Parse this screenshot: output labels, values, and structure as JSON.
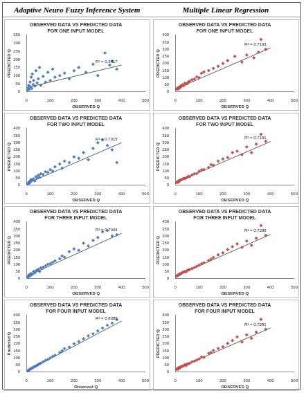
{
  "headers": [
    "Adaptive Neuro Fuzzy Inference System",
    "Multiple Linear Regression"
  ],
  "chart_data": [
    {
      "type": "scatter",
      "title": [
        "OBSERVED DATA VS PREDICTED DATA",
        "FOR ONE INPUT MODEL"
      ],
      "x_label": "OBSERVED Q",
      "y_label": "PREDICTED Q",
      "x": [
        5,
        8,
        10,
        12,
        15,
        18,
        20,
        22,
        25,
        28,
        30,
        35,
        40,
        45,
        50,
        55,
        60,
        70,
        80,
        90,
        100,
        110,
        120,
        140,
        160,
        180,
        200,
        220,
        250,
        280,
        300,
        330,
        350,
        360,
        380
      ],
      "y": [
        10,
        25,
        40,
        15,
        60,
        30,
        90,
        20,
        110,
        45,
        70,
        35,
        130,
        55,
        80,
        150,
        40,
        95,
        60,
        120,
        70,
        140,
        90,
        100,
        115,
        80,
        130,
        150,
        120,
        170,
        100,
        240,
        165,
        190,
        140
      ],
      "trend_line": {
        "x": [
          0,
          400
        ],
        "y": [
          25,
          165
        ]
      },
      "annotation": "R² = 0.3417",
      "color": "#4a7ebb",
      "marker": "diamond",
      "grid": false,
      "xlim": [
        0,
        500
      ],
      "xticks": [
        0,
        100,
        200,
        300,
        400,
        500
      ],
      "ylim": [
        0,
        350
      ],
      "yticks": [
        0,
        50,
        100,
        150,
        200,
        250,
        300,
        350
      ]
    },
    {
      "type": "scatter",
      "title": [
        "OBSERVED DATA VS PREDICTED DATA",
        "FOR ONE INPUT MODEL"
      ],
      "x_label": "OBSERVED Q",
      "y_label": "PREDICTED Q",
      "x": [
        5,
        8,
        10,
        12,
        15,
        18,
        20,
        22,
        25,
        28,
        30,
        35,
        40,
        45,
        50,
        55,
        60,
        70,
        80,
        90,
        100,
        110,
        120,
        140,
        160,
        180,
        200,
        220,
        250,
        280,
        300,
        330,
        350,
        360,
        380
      ],
      "y": [
        20,
        22,
        25,
        18,
        30,
        35,
        28,
        40,
        38,
        45,
        50,
        42,
        60,
        55,
        58,
        70,
        75,
        85,
        90,
        105,
        100,
        130,
        140,
        150,
        165,
        180,
        200,
        220,
        250,
        210,
        260,
        240,
        280,
        370,
        300
      ],
      "trend_line": {
        "x": [
          0,
          400
        ],
        "y": [
          18,
          310
        ]
      },
      "annotation": "R² = 0.7193",
      "color": "#c0504d",
      "marker": "diamond",
      "grid": false,
      "xlim": [
        0,
        500
      ],
      "xticks": [
        0,
        100,
        200,
        300,
        400,
        500
      ],
      "ylim": [
        0,
        400
      ],
      "yticks": [
        0,
        50,
        100,
        150,
        200,
        250,
        300,
        350,
        400
      ]
    },
    {
      "type": "scatter",
      "title": [
        "OBSERVED DATA VS PREDICTED DATA",
        "FOR TWO INPUT MODEL"
      ],
      "x_label": "OBSERVED Q",
      "y_label": "PREDICTED Q",
      "x": [
        5,
        8,
        10,
        12,
        15,
        18,
        20,
        25,
        30,
        35,
        40,
        45,
        50,
        55,
        60,
        70,
        80,
        90,
        100,
        110,
        120,
        140,
        150,
        160,
        180,
        200,
        220,
        240,
        260,
        280,
        300,
        320,
        340,
        360,
        380
      ],
      "y": [
        8,
        15,
        20,
        12,
        30,
        25,
        40,
        35,
        45,
        30,
        60,
        50,
        70,
        55,
        80,
        75,
        95,
        90,
        110,
        100,
        130,
        150,
        120,
        170,
        160,
        200,
        190,
        230,
        180,
        260,
        300,
        320,
        280,
        250,
        160
      ],
      "trend_line": {
        "x": [
          0,
          400
        ],
        "y": [
          10,
          300
        ]
      },
      "annotation": "R² = 0.7315",
      "color": "#4a7ebb",
      "marker": "diamond",
      "grid": false,
      "xlim": [
        0,
        500
      ],
      "xticks": [
        0,
        100,
        200,
        300,
        400,
        500
      ],
      "ylim": [
        0,
        400
      ],
      "yticks": [
        0,
        50,
        100,
        150,
        200,
        250,
        300,
        350,
        400
      ]
    },
    {
      "type": "scatter",
      "title": [
        "OBSERVED DATA VS PREDICTED DATA",
        "FOR TWO INPUT MODEL"
      ],
      "x_label": "OBSERVED Q",
      "y_label": "PREDICTED Q",
      "x": [
        5,
        8,
        10,
        12,
        15,
        18,
        20,
        25,
        30,
        35,
        40,
        45,
        50,
        55,
        60,
        70,
        80,
        90,
        100,
        110,
        120,
        140,
        150,
        160,
        180,
        200,
        220,
        240,
        260,
        280,
        300,
        320,
        340,
        360,
        380
      ],
      "y": [
        18,
        24,
        22,
        20,
        32,
        30,
        36,
        38,
        42,
        48,
        46,
        52,
        55,
        62,
        60,
        72,
        80,
        82,
        98,
        108,
        110,
        125,
        145,
        140,
        170,
        185,
        195,
        230,
        240,
        215,
        270,
        230,
        290,
        360,
        310
      ],
      "trend_line": {
        "x": [
          0,
          400
        ],
        "y": [
          18,
          308
        ]
      },
      "annotation": "R² = 0.7191",
      "color": "#c0504d",
      "marker": "diamond",
      "grid": false,
      "xlim": [
        0,
        500
      ],
      "xticks": [
        0,
        100,
        200,
        300,
        400,
        500
      ],
      "ylim": [
        0,
        400
      ],
      "yticks": [
        0,
        50,
        100,
        150,
        200,
        250,
        300,
        350,
        400
      ]
    },
    {
      "type": "scatter",
      "title": [
        "OBSERVED DATA VS PREDICTED DATA",
        "FOR THREE INPUT MODEL"
      ],
      "x_label": "OBSERVED Q",
      "y_label": "PREDICTED Q",
      "x": [
        5,
        8,
        10,
        12,
        15,
        18,
        20,
        25,
        30,
        35,
        40,
        45,
        50,
        55,
        60,
        70,
        80,
        90,
        100,
        110,
        120,
        140,
        150,
        160,
        180,
        200,
        220,
        240,
        260,
        280,
        300,
        320,
        340,
        360,
        380
      ],
      "y": [
        10,
        12,
        25,
        18,
        30,
        22,
        35,
        30,
        50,
        40,
        55,
        60,
        65,
        50,
        75,
        80,
        90,
        100,
        105,
        115,
        125,
        140,
        160,
        150,
        190,
        210,
        200,
        250,
        230,
        270,
        290,
        330,
        340,
        300,
        310
      ],
      "trend_line": {
        "x": [
          0,
          400
        ],
        "y": [
          15,
          320
        ]
      },
      "annotation": "R² = 0.7404",
      "color": "#4a7ebb",
      "marker": "diamond",
      "grid": false,
      "xlim": [
        0,
        500
      ],
      "xticks": [
        0,
        100,
        200,
        300,
        400,
        500
      ],
      "ylim": [
        0,
        400
      ],
      "yticks": [
        0,
        50,
        100,
        150,
        200,
        250,
        300,
        350,
        400
      ]
    },
    {
      "type": "scatter",
      "title": [
        "OBSERVED DATA VS PREDICTED DATA",
        "FOR THREE INPUT MODEL"
      ],
      "x_label": "OBSERVED Q",
      "y_label": "PREDICTED Q",
      "x": [
        5,
        8,
        10,
        12,
        15,
        18,
        20,
        25,
        30,
        35,
        40,
        45,
        50,
        55,
        60,
        70,
        80,
        90,
        100,
        110,
        120,
        140,
        150,
        160,
        180,
        200,
        220,
        240,
        260,
        280,
        300,
        320,
        340,
        360,
        380
      ],
      "y": [
        16,
        20,
        24,
        22,
        28,
        34,
        30,
        36,
        44,
        46,
        50,
        48,
        58,
        60,
        64,
        70,
        78,
        86,
        95,
        104,
        112,
        128,
        138,
        150,
        168,
        182,
        205,
        225,
        245,
        220,
        265,
        235,
        285,
        375,
        305
      ],
      "trend_line": {
        "x": [
          0,
          400
        ],
        "y": [
          16,
          312
        ]
      },
      "annotation": "R² = 0.7298",
      "color": "#c0504d",
      "marker": "diamond",
      "grid": false,
      "xlim": [
        0,
        500
      ],
      "xticks": [
        0,
        100,
        200,
        300,
        400,
        500
      ],
      "ylim": [
        0,
        400
      ],
      "yticks": [
        0,
        50,
        100,
        150,
        200,
        250,
        300,
        350,
        400
      ]
    },
    {
      "type": "scatter",
      "title": [
        "OBSERVED DATA VS PREDICTED DATA",
        "FOR FOUR INPUT MODEL"
      ],
      "x_label": "Observed Q",
      "y_label": "Predicted Q",
      "x": [
        5,
        8,
        10,
        12,
        15,
        18,
        20,
        25,
        30,
        35,
        40,
        45,
        50,
        55,
        60,
        70,
        80,
        90,
        100,
        110,
        120,
        140,
        150,
        160,
        180,
        200,
        220,
        240,
        260,
        280,
        300,
        320,
        340,
        360,
        380
      ],
      "y": [
        6,
        10,
        14,
        15,
        20,
        22,
        25,
        28,
        35,
        38,
        42,
        48,
        52,
        58,
        62,
        72,
        82,
        88,
        100,
        110,
        118,
        138,
        150,
        165,
        175,
        200,
        215,
        235,
        255,
        270,
        290,
        310,
        330,
        345,
        370
      ],
      "trend_line": {
        "x": [
          0,
          400
        ],
        "y": [
          5,
          360
        ]
      },
      "annotation": "R² = 0.8085",
      "color": "#4a7ebb",
      "marker": "diamond",
      "grid": false,
      "xlim": [
        0,
        500
      ],
      "xticks": [
        0,
        100,
        200,
        300,
        400,
        500
      ],
      "ylim": [
        0,
        400
      ],
      "yticks": [
        0,
        50,
        100,
        150,
        200,
        250,
        300,
        350,
        400
      ]
    },
    {
      "type": "scatter",
      "title": [
        "OBSERVED DATA VS PREDICTED DATA",
        "FOR FOUR INPUT MODEL"
      ],
      "x_label": "OBSERVED Q",
      "y_label": "PREDICTED Q",
      "x": [
        5,
        8,
        10,
        12,
        15,
        18,
        20,
        25,
        30,
        35,
        40,
        45,
        50,
        55,
        60,
        70,
        80,
        90,
        100,
        110,
        120,
        140,
        150,
        160,
        180,
        200,
        220,
        240,
        260,
        280,
        300,
        320,
        340,
        360,
        380
      ],
      "y": [
        19,
        21,
        26,
        20,
        31,
        33,
        29,
        39,
        40,
        44,
        52,
        45,
        57,
        58,
        61,
        71,
        77,
        84,
        92,
        106,
        103,
        132,
        138,
        152,
        166,
        178,
        202,
        222,
        248,
        212,
        262,
        238,
        282,
        372,
        302
      ],
      "trend_line": {
        "x": [
          0,
          400
        ],
        "y": [
          17,
          311
        ]
      },
      "annotation": "R² = 0.7291",
      "color": "#c0504d",
      "marker": "diamond",
      "grid": false,
      "xlim": [
        0,
        500
      ],
      "xticks": [
        0,
        100,
        200,
        300,
        400,
        500
      ],
      "ylim": [
        0,
        400
      ],
      "yticks": [
        0,
        50,
        100,
        150,
        200,
        250,
        300,
        350,
        400
      ]
    }
  ]
}
